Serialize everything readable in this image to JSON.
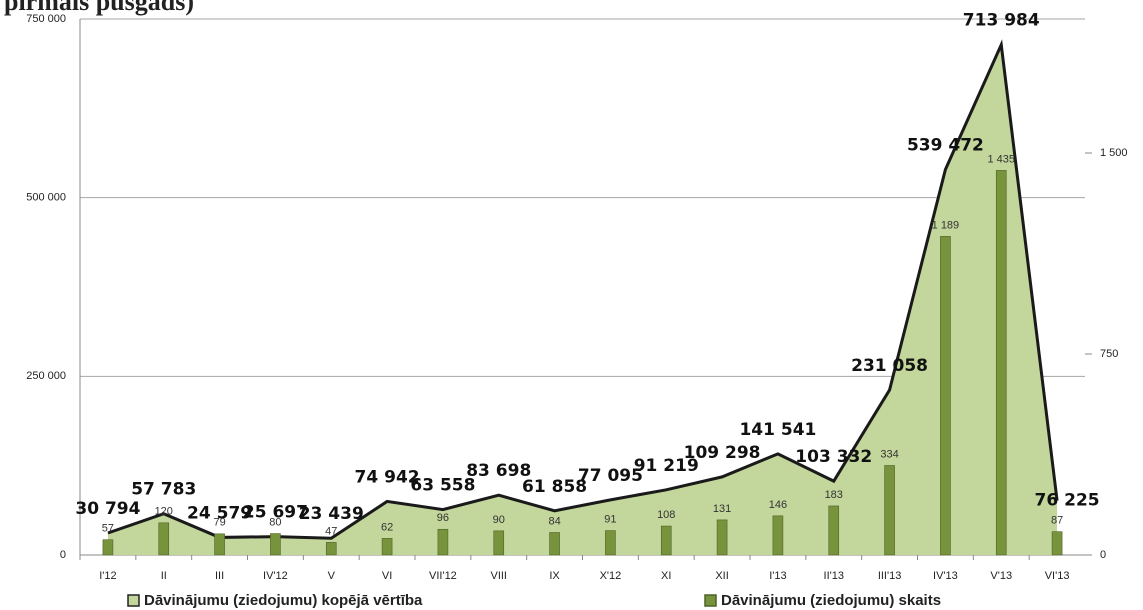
{
  "chart_data": {
    "type": "combo",
    "title": "pirmais pusgads)",
    "categories": [
      "I'12",
      "II",
      "III",
      "IV'12",
      "V",
      "VI",
      "VII'12",
      "VIII",
      "IX",
      "X'12",
      "XI",
      "XII",
      "I'13",
      "II'13",
      "III'13",
      "IV'13",
      "V'13",
      "VI'13"
    ],
    "series": [
      {
        "name": "Dāvinājumu (ziedojumu) kopējā vērtība",
        "type": "area",
        "color": "#c3d69b",
        "line_color": "#1a1a1a",
        "values": [
          30794,
          57783,
          24579,
          25697,
          23439,
          74942,
          63558,
          83698,
          61858,
          77095,
          91219,
          109298,
          141541,
          103332,
          231058,
          539472,
          713984,
          76225
        ],
        "value_labels": [
          "30 794",
          "57 783",
          "24 579",
          "25 697",
          "23 439",
          "74 942",
          "63 558",
          "83 698",
          "61 858",
          "77 095",
          "91 219",
          "109 298",
          "141 541",
          "103 332",
          "231 058",
          "539 472",
          "713 984",
          "76 225"
        ]
      },
      {
        "name": "Dāvinājumu (ziedojumu) skaits",
        "type": "bar",
        "axis": "y2",
        "color": "#77933c",
        "values": [
          57,
          120,
          79,
          80,
          47,
          62,
          96,
          90,
          84,
          91,
          108,
          131,
          146,
          183,
          334,
          1189,
          1435,
          87
        ],
        "value_labels": [
          "57",
          "120",
          "79",
          "80",
          "47",
          "62",
          "96",
          "90",
          "84",
          "91",
          "108",
          "131",
          "146",
          "183",
          "334",
          "1 189",
          "1 435",
          "87"
        ]
      }
    ],
    "ylim": [
      0,
      750000
    ],
    "yticks": [
      0,
      {
        "value": 250000,
        "label": "250 000"
      },
      {
        "value": 500000,
        "label": "500 000"
      },
      {
        "value": 750000,
        "label": "750 000"
      }
    ],
    "y2lim": [
      0,
      2000
    ],
    "y2ticks": [
      0,
      750,
      {
        "value": 1500,
        "label": "1 500"
      }
    ],
    "grid": true,
    "legend": "bottom"
  }
}
